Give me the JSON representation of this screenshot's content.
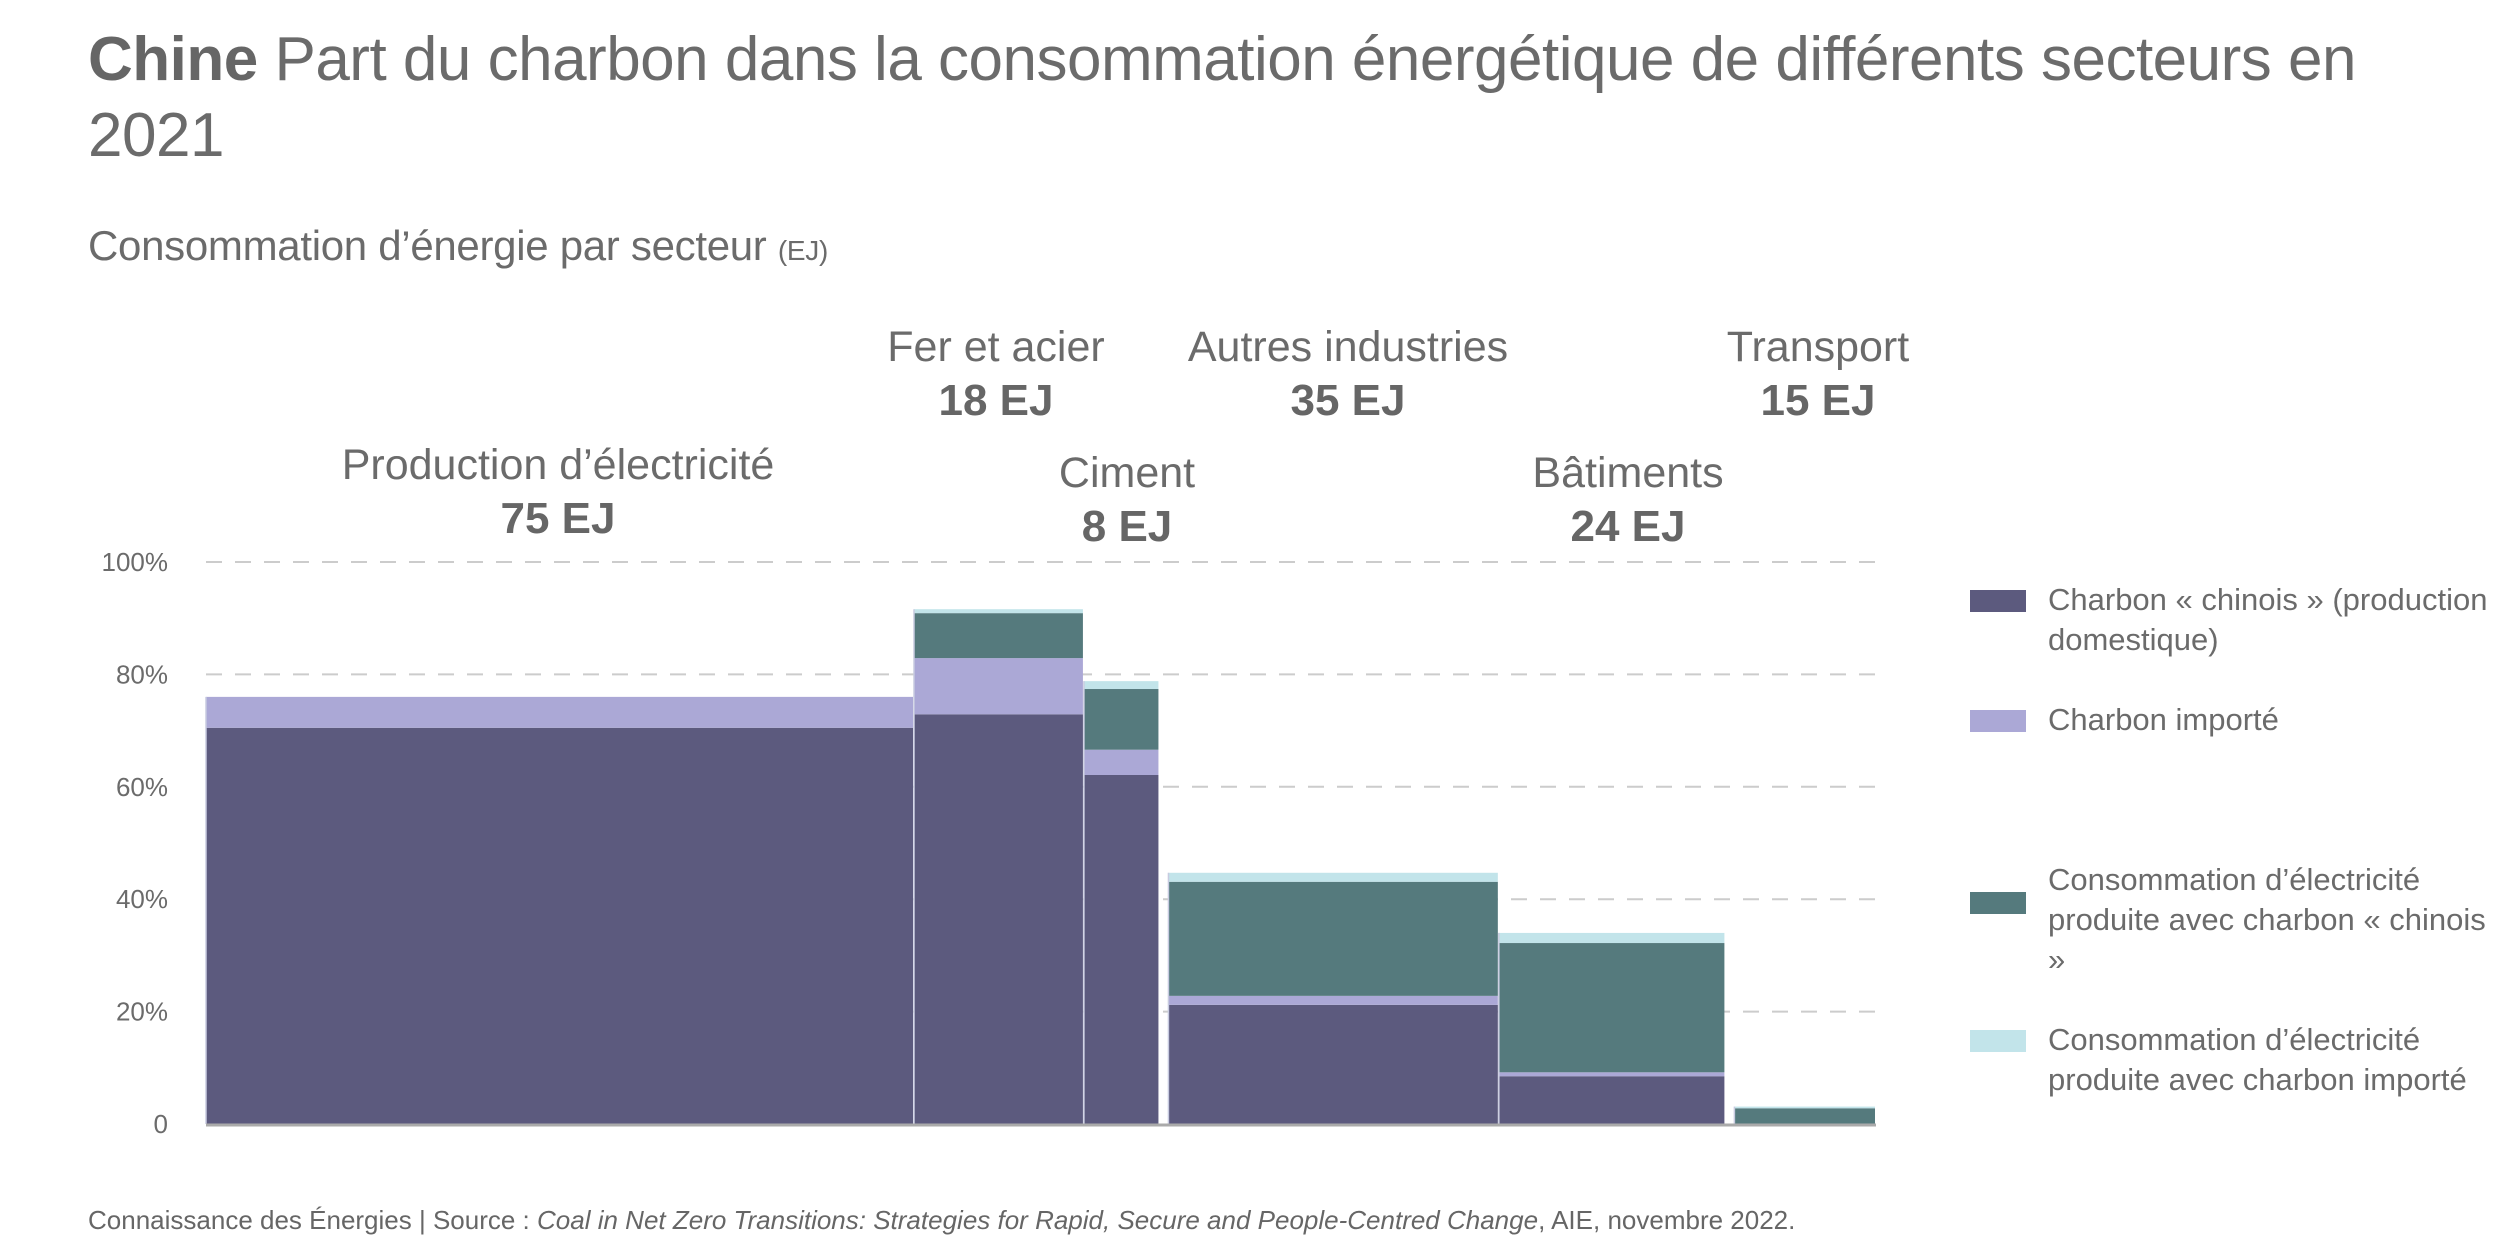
{
  "title": {
    "bold": "Chine",
    "text": "Part du charbon dans la consommation énergétique de différents secteurs en 2021"
  },
  "subtitle": {
    "text": "Consommation d’énergie par secteur",
    "unit": "(EJ)"
  },
  "footer": {
    "prefix": "Connaissance des Énergies | Source : ",
    "source_title": "Coal in Net Zero Transitions: Strategies for Rapid, Secure and People-Centred Change",
    "suffix": ", AIE, novembre 2022."
  },
  "colors": {
    "domestic_coal": "#5c5a7e",
    "imported_coal": "#aba8d6",
    "elec_domestic_coal": "#557a7d",
    "elec_imported_coal": "#c2e4ea",
    "grid": "#cccccc",
    "axis": "#aaaaaa"
  },
  "chart_data": {
    "type": "bar",
    "subtype": "variable-width stacked (marimekko)",
    "title": "Chine Part du charbon dans la consommation énergétique de différents secteurs en 2021",
    "subtitle": "Consommation d’énergie par secteur (EJ)",
    "ylabel": "",
    "xlabel": "",
    "ylim": [
      0,
      100
    ],
    "yticks": [
      0,
      20,
      40,
      60,
      80,
      100
    ],
    "ytick_labels": [
      "0",
      "20%",
      "40%",
      "60%",
      "80%",
      "100%"
    ],
    "grid": true,
    "legend_position": "right",
    "categories": [
      "Production d’électricité",
      "Fer et acier",
      "Ciment",
      "Autres industries",
      "Bâtiments",
      "Transport"
    ],
    "category_value_labels": [
      "75 EJ",
      "18 EJ",
      "8 EJ",
      "35 EJ",
      "24 EJ",
      "15 EJ"
    ],
    "widths_ej": [
      75,
      18,
      8,
      35,
      24,
      15
    ],
    "series": [
      {
        "name": "Charbon « chinois » (production domestique)",
        "key": "domestic_coal",
        "values": [
          70.5,
          72.9,
          62.1,
          21.2,
          8.5,
          0
        ]
      },
      {
        "name": "Charbon importé",
        "key": "imported_coal",
        "values": [
          5.5,
          10.0,
          4.5,
          1.6,
          0.7,
          0
        ]
      },
      {
        "name": "Consommation d’électricité produite avec charbon « chinois »",
        "key": "elec_domestic_coal",
        "values": [
          0,
          8.0,
          10.8,
          20.3,
          23.0,
          2.8
        ]
      },
      {
        "name": "Consommation d’électricité produite avec charbon importé",
        "key": "elec_imported_coal",
        "values": [
          0,
          0.7,
          1.4,
          1.6,
          1.8,
          0.3
        ]
      }
    ]
  },
  "legend": [
    {
      "label": "Charbon « chinois » (production domestique)",
      "key": "domestic_coal"
    },
    {
      "label": "Charbon importé",
      "key": "imported_coal"
    },
    {
      "label": "Consommation d’électricité produite avec charbon « chinois »",
      "key": "elec_domestic_coal"
    },
    {
      "label": "Consommation d’électricité produite avec charbon importé",
      "key": "elec_imported_coal"
    }
  ]
}
